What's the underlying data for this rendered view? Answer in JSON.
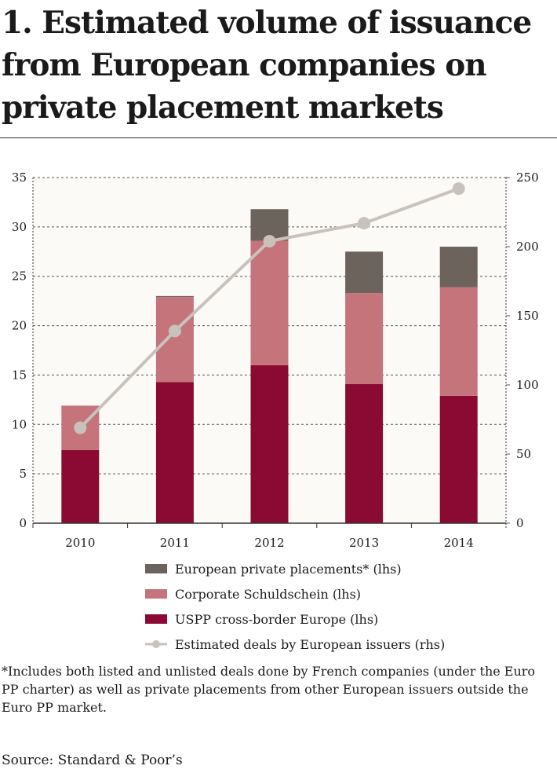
{
  "title": "1. Estimated volume of issuance from European companies on private placement markets",
  "chart_data": {
    "type": "bar",
    "stacked": true,
    "categories": [
      "2010",
      "2011",
      "2012",
      "2013",
      "2014"
    ],
    "series": [
      {
        "name": "USPP cross-border Europe (lhs)",
        "axis": "left",
        "color": "#8b0a33",
        "values": [
          7.4,
          14.3,
          16.0,
          14.1,
          12.9
        ]
      },
      {
        "name": "Corporate Schuldschein (lhs)",
        "axis": "left",
        "color": "#c4747a",
        "values": [
          4.5,
          8.6,
          12.6,
          9.2,
          11.0
        ]
      },
      {
        "name": "European private placements* (lhs)",
        "axis": "left",
        "color": "#6c635c",
        "values": [
          0,
          0.1,
          3.2,
          4.2,
          4.1
        ]
      },
      {
        "name": "Estimated deals by European issuers (rhs)",
        "axis": "right",
        "type": "line",
        "color": "#c9c2bc",
        "values": [
          69,
          139,
          204,
          217,
          242
        ]
      }
    ],
    "y_left": {
      "range": [
        0,
        35
      ],
      "ticks": [
        0,
        5,
        10,
        15,
        20,
        25,
        30,
        35
      ]
    },
    "y_right": {
      "range": [
        0,
        250
      ],
      "ticks": [
        0,
        50,
        100,
        150,
        200,
        250
      ]
    },
    "grid": true,
    "legend_position": "bottom"
  },
  "legend": [
    {
      "label": "European private placements* (lhs)",
      "color": "#6c635c",
      "kind": "box"
    },
    {
      "label": "Corporate Schuldschein (lhs)",
      "color": "#c4747a",
      "kind": "box"
    },
    {
      "label": "USPP cross-border Europe (lhs)",
      "color": "#8b0a33",
      "kind": "box"
    },
    {
      "label": "Estimated deals by European issuers (rhs)",
      "color": "#c9c2bc",
      "kind": "line"
    }
  ],
  "footnote": "*Includes both listed and unlisted deals done by French companies (under the Euro PP charter) as well as private placements from other European issuers outside the Euro PP market.",
  "source": "Source: Standard & Poor’s"
}
